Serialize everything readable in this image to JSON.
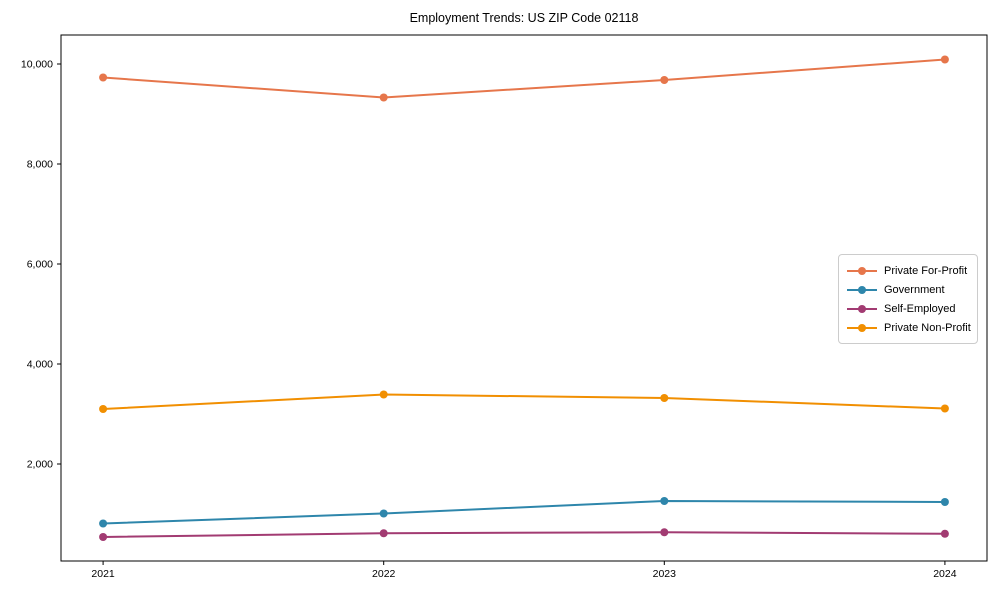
{
  "chart_data": {
    "type": "line",
    "title": "Employment Trends: US ZIP Code 02118",
    "x": [
      2021,
      2022,
      2023,
      2024
    ],
    "x_tick_labels": [
      "2021",
      "2022",
      "2023",
      "2024"
    ],
    "y_ticks": [
      2000,
      4000,
      6000,
      8000,
      10000
    ],
    "y_tick_labels": [
      "2,000",
      "4,000",
      "6,000",
      "8,000",
      "10,000"
    ],
    "xlim": [
      2020.85,
      2024.15
    ],
    "ylim": [
      60,
      10580
    ],
    "grid": false,
    "legend_position": "center-right",
    "axis_color": "#000000",
    "background_color": "#ffffff",
    "series": [
      {
        "name": "Private For-Profit",
        "color": "#E6764B",
        "values": [
          9730,
          9330,
          9680,
          10090
        ]
      },
      {
        "name": "Government",
        "color": "#2E86AB",
        "values": [
          810,
          1010,
          1260,
          1240
        ]
      },
      {
        "name": "Self-Employed",
        "color": "#A23B72",
        "values": [
          540,
          615,
          635,
          605
        ]
      },
      {
        "name": "Private Non-Profit",
        "color": "#F18F01",
        "values": [
          3100,
          3390,
          3320,
          3110
        ]
      }
    ]
  }
}
